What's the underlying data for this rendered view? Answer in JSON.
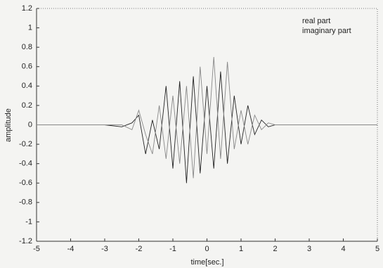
{
  "chart_data": {
    "type": "line",
    "x": [
      -5,
      -4,
      -3,
      -2.5,
      -2.2,
      -2,
      -1.8,
      -1.6,
      -1.4,
      -1.2,
      -1,
      -0.8,
      -0.6,
      -0.4,
      -0.2,
      0,
      0.2,
      0.4,
      0.6,
      0.8,
      1,
      1.2,
      1.4,
      1.6,
      1.8,
      2,
      2.5,
      3,
      4,
      5
    ],
    "series": [
      {
        "name": "real part",
        "color": "#222222",
        "values": [
          0,
          0,
          0,
          -0.02,
          0.02,
          0.1,
          -0.3,
          0.05,
          -0.25,
          0.4,
          -0.45,
          0.45,
          -0.6,
          0.5,
          -0.5,
          0.4,
          -0.45,
          0.55,
          -0.4,
          0.3,
          -0.2,
          0.2,
          -0.1,
          0.05,
          -0.02,
          0,
          0,
          0,
          0,
          0
        ]
      },
      {
        "name": "imaginary part",
        "color": "#888888",
        "values": [
          0,
          0,
          0,
          0,
          -0.05,
          0.15,
          -0.1,
          -0.3,
          0.2,
          -0.35,
          0.3,
          -0.4,
          0.4,
          -0.55,
          0.6,
          -0.3,
          0.7,
          -0.35,
          0.65,
          -0.25,
          0.15,
          -0.2,
          0.1,
          -0.05,
          0.02,
          0,
          0,
          0,
          0,
          0
        ]
      }
    ],
    "xlabel": "time[sec.]",
    "ylabel": "amplitude",
    "xlim": [
      -5,
      5
    ],
    "xticks": [
      -5,
      -4,
      -3,
      -2,
      -1,
      0,
      1,
      2,
      3,
      4,
      5
    ],
    "ylim": [
      -1.2,
      1.2
    ],
    "yticks": [
      -1.2,
      -1,
      -0.8,
      -0.6,
      -0.4,
      -0.2,
      0,
      0.2,
      0.4,
      0.6,
      0.8,
      1,
      1.2
    ],
    "legend": "top-right"
  }
}
